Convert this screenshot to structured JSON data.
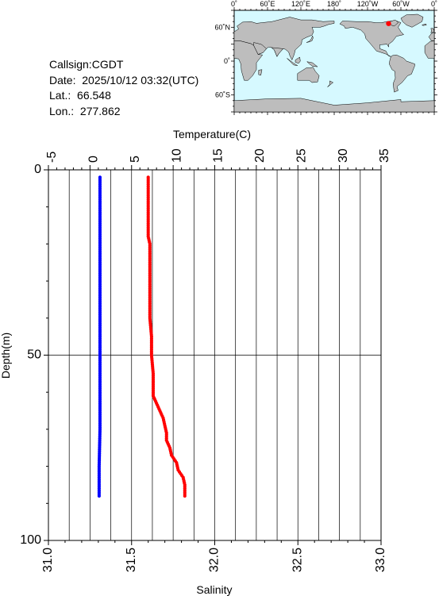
{
  "info": {
    "callsign_label": "Callsign:",
    "callsign": "CGDT",
    "date_label": "Date:",
    "date": "2025/10/12 03:32(UTC)",
    "lat_label": "Lat.:",
    "lat": "66.548",
    "lon_label": "Lon.:",
    "lon": "277.862"
  },
  "map": {
    "lon_ticks": [
      "0˚",
      "60˚E",
      "120˚E",
      "180˚",
      "120˚W",
      "60˚W",
      "0˚"
    ],
    "lat_ticks": [
      "60˚N",
      "0˚",
      "60˚S"
    ],
    "ocean_color": "#d6f9ff",
    "land_color": "#bdbdbd",
    "marker_color": "#ff0000",
    "station": {
      "lat": 66.548,
      "lon": 277.862
    }
  },
  "chart_data": {
    "type": "line",
    "xlabel_top": "Temperature(C)",
    "xlabel_bottom": "Salinity",
    "ylabel": "Depth(m)",
    "ylim": [
      100,
      0
    ],
    "temperature_lim": [
      -5,
      35
    ],
    "salinity_lim": [
      31.0,
      33.0
    ],
    "temperature_ticks": [
      "-5",
      "0",
      "5",
      "10",
      "15",
      "20",
      "25",
      "30",
      "35"
    ],
    "salinity_ticks": [
      "31.0",
      "31.5",
      "32.0",
      "32.5",
      "33.0"
    ],
    "depth_ticks": [
      "0",
      "50",
      "100"
    ],
    "grid": true,
    "series": [
      {
        "color": "#0000ff",
        "axis": "temperature",
        "depth": [
          2,
          10,
          20,
          30,
          40,
          50,
          60,
          70,
          80,
          85,
          88
        ],
        "values": [
          1.2,
          1.2,
          1.2,
          1.2,
          1.2,
          1.2,
          1.2,
          1.2,
          1.1,
          1.1,
          1.1
        ]
      },
      {
        "color": "#ff0000",
        "axis": "salinity",
        "depth": [
          2,
          5,
          10,
          15,
          18,
          20,
          25,
          30,
          35,
          40,
          45,
          50,
          55,
          58,
          61,
          63,
          65,
          67,
          69,
          71,
          73,
          75,
          77,
          79,
          81,
          83,
          85,
          87,
          88
        ],
        "values": [
          31.6,
          31.6,
          31.6,
          31.6,
          31.6,
          31.61,
          31.61,
          31.61,
          31.61,
          31.61,
          31.62,
          31.62,
          31.63,
          31.63,
          31.63,
          31.65,
          31.67,
          31.69,
          31.7,
          31.71,
          31.71,
          31.73,
          31.74,
          31.77,
          31.78,
          31.81,
          31.82,
          31.82,
          31.82
        ]
      }
    ]
  }
}
